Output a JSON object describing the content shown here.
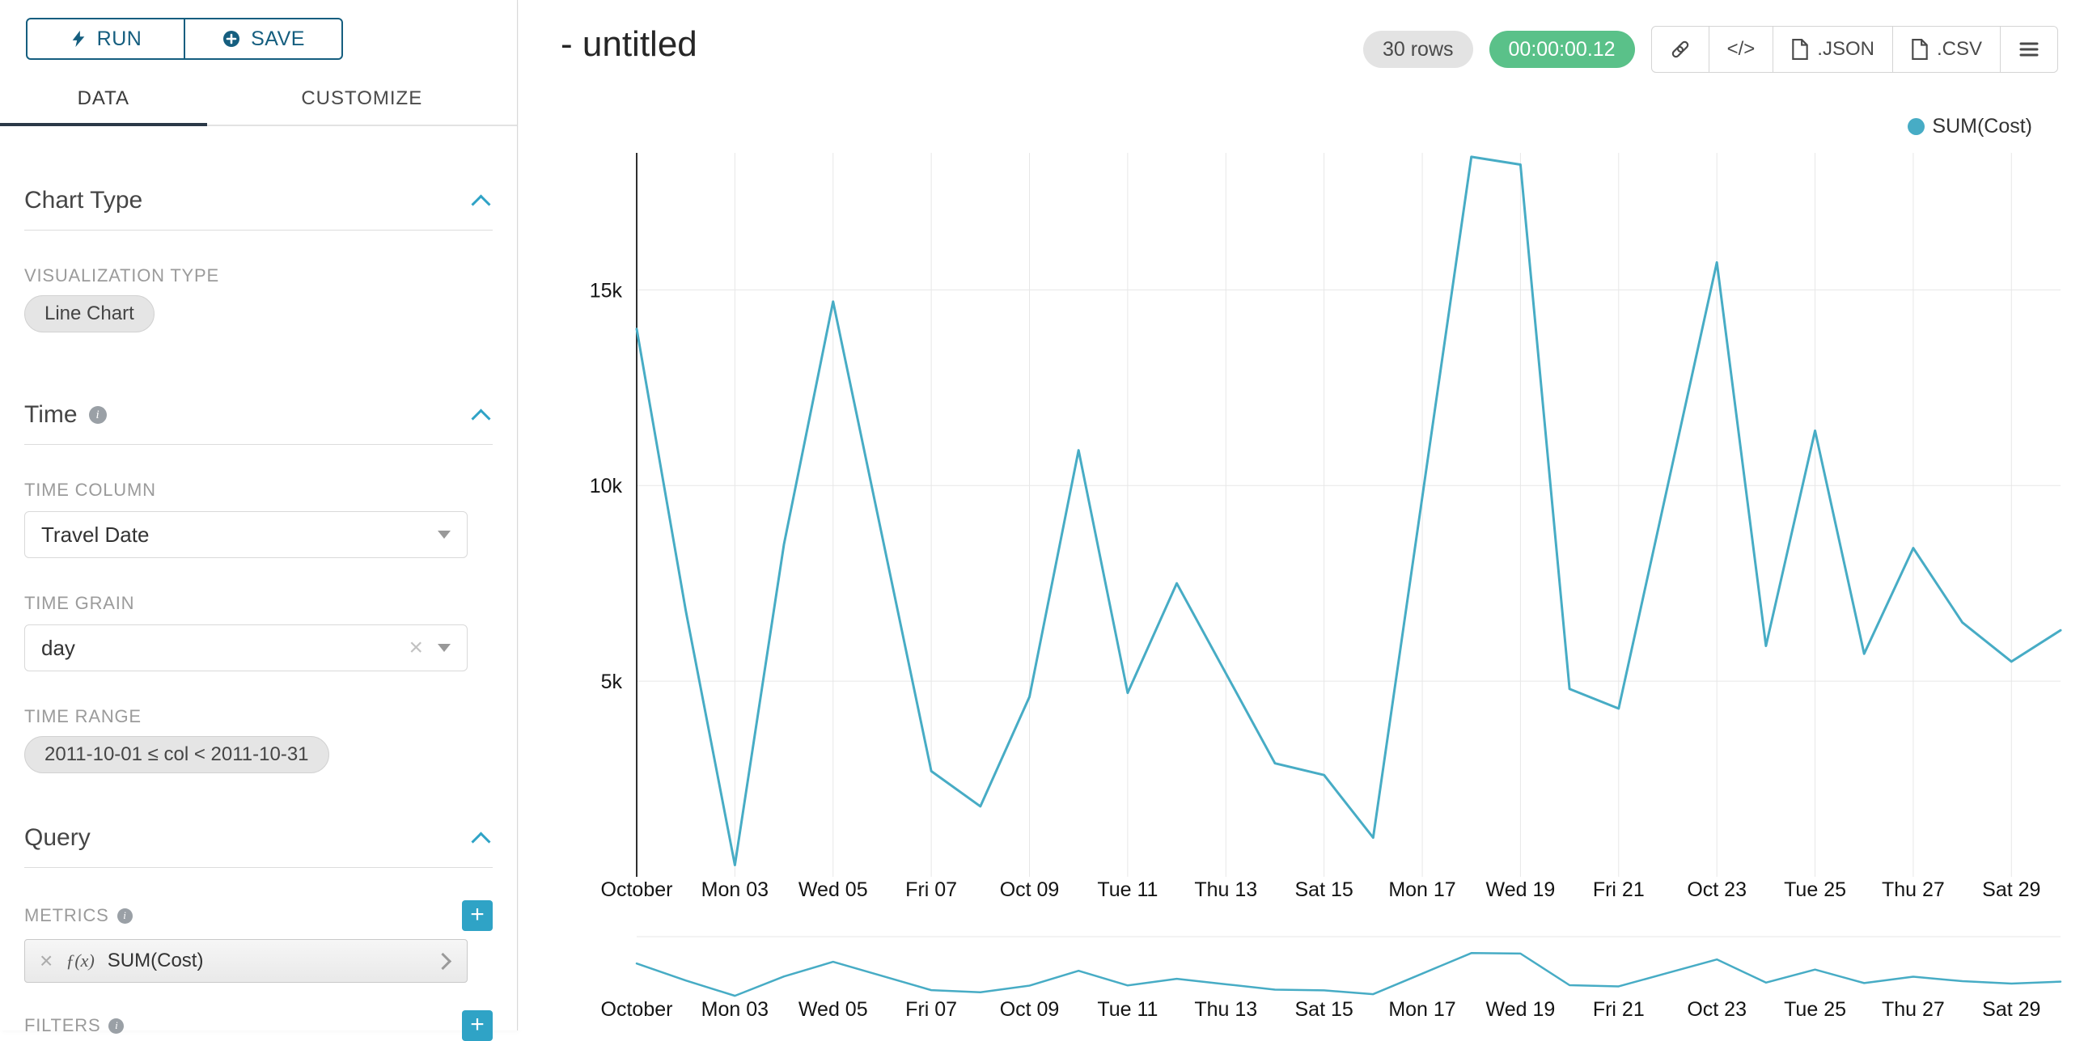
{
  "colors": {
    "primary": "#155E7F",
    "accent": "#2FA3C6",
    "line": "#47ACC5",
    "success_badge": "#5AC189",
    "grid": "#E7E7E7"
  },
  "sidebar": {
    "run_button": "RUN",
    "save_button": "SAVE",
    "tabs": [
      {
        "label": "DATA",
        "active": true
      },
      {
        "label": "CUSTOMIZE",
        "active": false
      }
    ],
    "chart_type_section": {
      "title": "Chart Type",
      "viz_type_label": "VISUALIZATION TYPE",
      "viz_type_value": "Line Chart"
    },
    "time_section": {
      "title": "Time",
      "time_column_label": "TIME COLUMN",
      "time_column_value": "Travel Date",
      "time_grain_label": "TIME GRAIN",
      "time_grain_value": "day",
      "time_range_label": "TIME RANGE",
      "time_range_value": "2011-10-01 ≤ col < 2011-10-31"
    },
    "query_section": {
      "title": "Query",
      "metrics_label": "METRICS",
      "metric_fx": "ƒ(x)",
      "metric_name": "SUM(Cost)",
      "filters_label": "FILTERS"
    }
  },
  "header": {
    "title": "- untitled",
    "rows_badge": "30 rows",
    "timer_badge": "00:00:00.12",
    "code_button": "</>",
    "json_button": ".JSON",
    "csv_button": ".CSV"
  },
  "legend": {
    "label": "SUM(Cost)"
  },
  "chart_data": {
    "type": "line",
    "title": "- untitled",
    "xlabel": "Travel Date",
    "ylabel": "SUM(Cost)",
    "grid": true,
    "legend_position": "top-right",
    "has_focus_mini_chart": true,
    "x_axis": {
      "n_points": 30,
      "tick_indices": [
        0,
        2,
        4,
        6,
        8,
        10,
        12,
        14,
        16,
        18,
        20,
        22,
        24,
        26,
        28
      ],
      "tick_labels": [
        "October",
        "Mon 03",
        "Wed 05",
        "Fri 07",
        "Oct 09",
        "Tue 11",
        "Thu 13",
        "Sat 15",
        "Mon 17",
        "Wed 19",
        "Fri 21",
        "Oct 23",
        "Tue 25",
        "Thu 27",
        "Sat 29"
      ]
    },
    "y_axis": {
      "ylim": [
        0,
        18500
      ],
      "ticks": [
        {
          "value": 5000,
          "label": "5k"
        },
        {
          "value": 10000,
          "label": "10k"
        },
        {
          "value": 15000,
          "label": "15k"
        }
      ]
    },
    "series": [
      {
        "name": "SUM(Cost)",
        "color": "#47ACC5",
        "values": [
          14000,
          6800,
          300,
          8500,
          14700,
          8700,
          2700,
          1800,
          4600,
          10900,
          4700,
          7500,
          5200,
          2900,
          2600,
          1000,
          9700,
          18400,
          18200,
          4800,
          4300,
          10000,
          15700,
          5900,
          11400,
          5700,
          8400,
          6500,
          5500,
          6300
        ]
      }
    ]
  }
}
